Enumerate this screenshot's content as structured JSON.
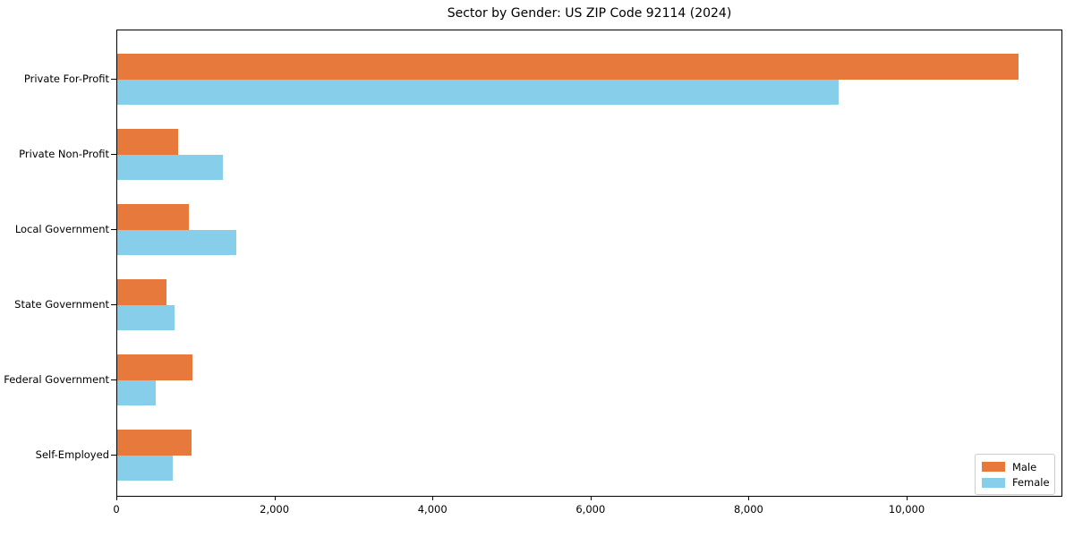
{
  "title": "Sector by Gender: US ZIP Code 92114 (2024)",
  "colors": {
    "male": "#E8793C",
    "female": "#87CEEB",
    "axis": "#000000",
    "legend_border": "#CCCCCC",
    "background": "#FFFFFF"
  },
  "legend": {
    "position": "lower right",
    "items": [
      {
        "label": "Male"
      },
      {
        "label": "Female"
      }
    ]
  },
  "chart_data": {
    "type": "bar",
    "orientation": "horizontal",
    "title": "Sector by Gender: US ZIP Code 92114 (2024)",
    "categories": [
      "Private For-Profit",
      "Private Non-Profit",
      "Local Government",
      "State Government",
      "Federal Government",
      "Self-Employed"
    ],
    "series": [
      {
        "name": "Male",
        "color": "#E8793C",
        "values": [
          11400,
          775,
          905,
          625,
          955,
          935
        ]
      },
      {
        "name": "Female",
        "color": "#87CEEB",
        "values": [
          9130,
          1340,
          1510,
          730,
          485,
          700
        ]
      }
    ],
    "xlabel": "",
    "ylabel": "",
    "xlim": [
      0,
      11970
    ],
    "xticks": [
      0,
      2000,
      4000,
      6000,
      8000,
      10000
    ],
    "xtick_labels": [
      "0",
      "2,000",
      "4,000",
      "6,000",
      "8,000",
      "10,000"
    ],
    "grid": false,
    "legend_position": "lower right"
  }
}
